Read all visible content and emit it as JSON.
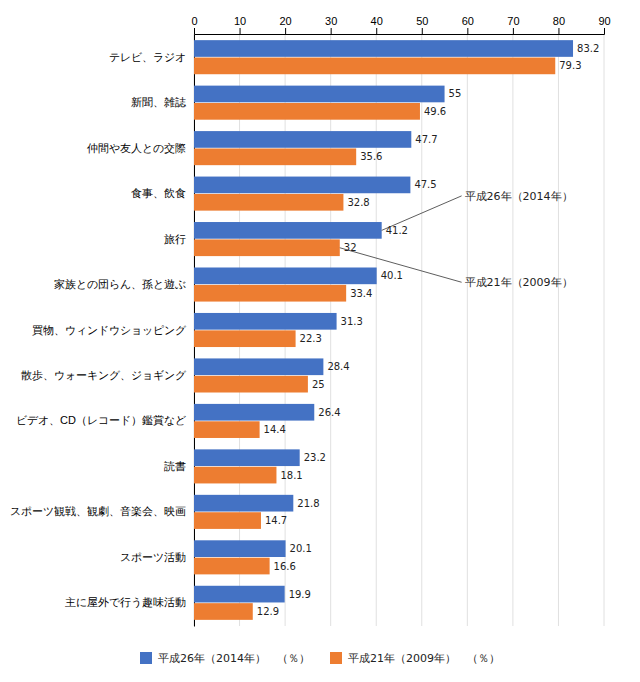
{
  "chart_data": {
    "type": "bar",
    "orientation": "horizontal",
    "categories": [
      "テレビ、ラジオ",
      "新聞、雑誌",
      "仲間や友人との交際",
      "食事、飲食",
      "旅行",
      "家族との団らん、孫と遊ぶ",
      "買物、ウィンドウショッピング",
      "散歩、ウォーキング、ジョギング",
      "ビデオ、CD（レコード）鑑賞など",
      "読書",
      "スポーツ観戦、観劇、音楽会、映画",
      "スポーツ活動",
      "主に屋外で行う趣味活動"
    ],
    "series": [
      {
        "name": "平成26年（2014年）　（％）",
        "color": "#4472C4",
        "values": [
          83.2,
          55,
          47.7,
          47.5,
          41.2,
          40.1,
          31.3,
          28.4,
          26.4,
          23.2,
          21.8,
          20.1,
          19.9
        ],
        "annotation": {
          "text": "平成26年（2014年）",
          "category": "旅行"
        }
      },
      {
        "name": "平成21年（2009年）　（％）",
        "color": "#ED7D31",
        "values": [
          79.3,
          49.6,
          35.6,
          32.8,
          32,
          33.4,
          22.3,
          25,
          14.4,
          18.1,
          14.7,
          16.6,
          12.9
        ],
        "annotation": {
          "text": "平成21年（2009年）",
          "category": "旅行"
        }
      }
    ],
    "xlim": [
      0,
      90
    ],
    "xticks": [
      0,
      10,
      20,
      30,
      40,
      50,
      60,
      70,
      80,
      90
    ],
    "grid": true,
    "data_labels": true,
    "legend": "bottom"
  }
}
